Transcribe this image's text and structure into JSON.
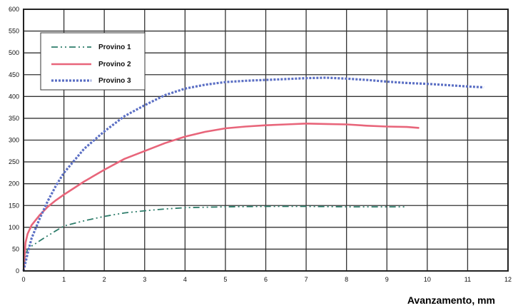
{
  "chart_data": {
    "type": "line",
    "xlabel": "Avanzamento, mm",
    "ylabel": "",
    "xlim": [
      0,
      12
    ],
    "ylim": [
      0,
      600
    ],
    "xticks": [
      0,
      1,
      2,
      3,
      4,
      5,
      6,
      7,
      8,
      9,
      10,
      11,
      12
    ],
    "yticks": [
      0,
      50,
      100,
      150,
      200,
      250,
      300,
      350,
      400,
      450,
      500,
      550,
      600
    ],
    "grid": true,
    "legend_position": "top-left",
    "series": [
      {
        "name": "Provino 1",
        "color": "#2e7d6b",
        "style": "dash-dot",
        "x": [
          0,
          0.05,
          0.1,
          0.2,
          0.3,
          0.5,
          0.8,
          1.0,
          1.5,
          2.0,
          2.5,
          3.0,
          3.5,
          4.0,
          5.0,
          6.0,
          7.0,
          8.0,
          9.0,
          9.5
        ],
        "y": [
          0,
          35,
          50,
          57,
          63,
          75,
          92,
          103,
          115,
          125,
          133,
          138,
          142,
          145,
          147,
          148,
          148,
          147,
          147,
          147
        ]
      },
      {
        "name": "Provino 2",
        "color": "#e8657a",
        "style": "solid",
        "x": [
          0,
          0.05,
          0.1,
          0.2,
          0.4,
          0.6,
          0.8,
          1.0,
          1.5,
          2.0,
          2.5,
          3.0,
          3.5,
          4.0,
          4.5,
          5.0,
          5.5,
          6.0,
          6.5,
          7.0,
          7.5,
          8.0,
          8.5,
          9.0,
          9.5,
          9.8
        ],
        "y": [
          0,
          65,
          85,
          105,
          128,
          147,
          162,
          175,
          205,
          232,
          257,
          275,
          293,
          308,
          319,
          327,
          331,
          334,
          336,
          338,
          337,
          336,
          333,
          331,
          330,
          328
        ]
      },
      {
        "name": "Provino 3",
        "color": "#5b6fc4",
        "style": "dotted",
        "x": [
          0,
          0.1,
          0.2,
          0.4,
          0.6,
          0.8,
          1.0,
          1.5,
          2.0,
          2.5,
          3.0,
          3.5,
          4.0,
          4.5,
          5.0,
          5.5,
          6.0,
          6.5,
          7.0,
          7.5,
          8.0,
          8.5,
          9.0,
          9.5,
          10.0,
          10.5,
          11.0,
          11.4
        ],
        "y": [
          0,
          40,
          75,
          120,
          160,
          195,
          225,
          280,
          320,
          355,
          380,
          403,
          418,
          427,
          433,
          436,
          438,
          440,
          442,
          443,
          441,
          438,
          434,
          431,
          429,
          426,
          423,
          421
        ]
      }
    ]
  }
}
